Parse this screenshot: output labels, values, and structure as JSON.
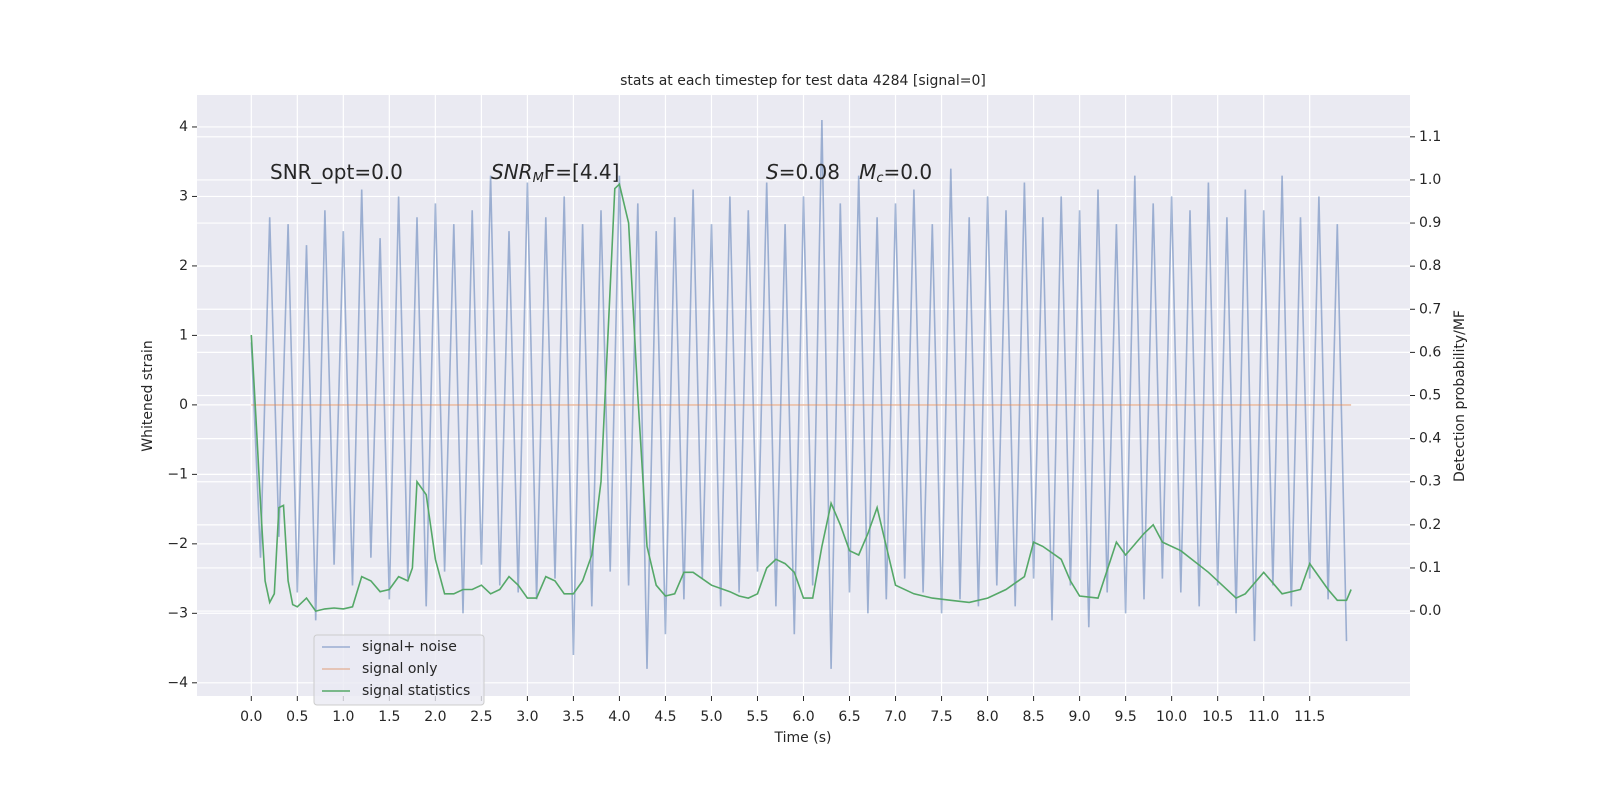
{
  "chart_data": {
    "type": "line",
    "title": "stats at each timestep for test data 4284 [signal=0]",
    "xlabel": "Time (s)",
    "ylabel": "Whitened strain",
    "y2label": "Detection probability/MF",
    "background": "#eaeaf2",
    "grid": true,
    "legend": "lower left",
    "annotations": [
      {
        "parts": [
          {
            "text": "SNR_opt=0.0"
          }
        ]
      },
      {
        "parts": [
          {
            "text": "SNR",
            "italic": true
          },
          {
            "text": "M",
            "italic": true,
            "sub": true
          },
          {
            "text": "F=[4.4]"
          }
        ]
      },
      {
        "parts": [
          {
            "text": "S",
            "italic": true
          },
          {
            "text": "=0.08   "
          },
          {
            "text": "M",
            "italic": true
          },
          {
            "text": "c",
            "italic": true,
            "sub": true
          },
          {
            "text": "=0.0"
          }
        ]
      }
    ],
    "xlim": [
      -0.59,
      12.59
    ],
    "ylim": [
      -4.19,
      4.46
    ],
    "y2lim": [
      -0.197,
      1.197
    ],
    "xticks": [
      {
        "value": 0,
        "label": "0.0"
      },
      0.5,
      {
        "value": 1,
        "label": "1.0"
      },
      1.5,
      {
        "value": 2,
        "label": "2.0"
      },
      2.5,
      {
        "value": 3,
        "label": "3.0"
      },
      3.5,
      {
        "value": 4,
        "label": "4.0"
      },
      4.5,
      {
        "value": 5,
        "label": "5.0"
      },
      5.5,
      {
        "value": 6,
        "label": "6.0"
      },
      6.5,
      {
        "value": 7,
        "label": "7.0"
      },
      7.5,
      {
        "value": 8,
        "label": "8.0"
      },
      8.5,
      {
        "value": 9,
        "label": "9.0"
      },
      9.5,
      {
        "value": 10,
        "label": "10.0"
      },
      10.5,
      {
        "value": 11,
        "label": "11.0"
      },
      11.5
    ],
    "yticks": [
      {
        "value": -4,
        "label": "−4"
      },
      {
        "value": -3,
        "label": "−3"
      },
      {
        "value": -2,
        "label": "−2"
      },
      {
        "value": -1,
        "label": "−1"
      },
      0,
      1,
      2,
      3,
      4
    ],
    "y2ticks": [
      {
        "value": 0,
        "label": "0.0"
      },
      0.1,
      0.2,
      0.3,
      0.4,
      0.5,
      0.6,
      0.7,
      0.8,
      0.9,
      {
        "value": 1,
        "label": "1.0"
      },
      1.1
    ],
    "series": [
      {
        "name": "signal+ noise",
        "color": "#4c72b0",
        "alpha": 0.5,
        "axis": "y",
        "x": [
          0.0,
          0.1,
          0.2,
          0.3,
          0.4,
          0.5,
          0.6,
          0.7,
          0.8,
          0.9,
          1.0,
          1.1,
          1.2,
          1.3,
          1.4,
          1.5,
          1.6,
          1.7,
          1.8,
          1.9,
          2.0,
          2.1,
          2.2,
          2.3,
          2.4,
          2.5,
          2.6,
          2.7,
          2.8,
          2.9,
          3.0,
          3.1,
          3.2,
          3.3,
          3.4,
          3.5,
          3.6,
          3.7,
          3.8,
          3.9,
          4.0,
          4.1,
          4.2,
          4.3,
          4.4,
          4.5,
          4.6,
          4.7,
          4.8,
          4.9,
          5.0,
          5.1,
          5.2,
          5.3,
          5.4,
          5.5,
          5.6,
          5.7,
          5.8,
          5.9,
          6.0,
          6.1,
          6.2,
          6.3,
          6.4,
          6.5,
          6.6,
          6.7,
          6.8,
          6.9,
          7.0,
          7.1,
          7.2,
          7.3,
          7.4,
          7.5,
          7.6,
          7.7,
          7.8,
          7.9,
          8.0,
          8.1,
          8.2,
          8.3,
          8.4,
          8.5,
          8.6,
          8.7,
          8.8,
          8.9,
          9.0,
          9.1,
          9.2,
          9.3,
          9.4,
          9.5,
          9.6,
          9.7,
          9.8,
          9.9,
          10.0,
          10.1,
          10.2,
          10.3,
          10.4,
          10.5,
          10.6,
          10.7,
          10.8,
          10.9,
          11.0,
          11.1,
          11.2,
          11.3,
          11.4,
          11.5,
          11.6,
          11.7,
          11.8,
          11.9
        ],
        "values": [
          0.9,
          -2.2,
          2.7,
          -1.9,
          2.6,
          -2.7,
          2.3,
          -3.1,
          2.8,
          -2.3,
          2.5,
          -2.6,
          3.1,
          -2.2,
          2.4,
          -2.8,
          3.0,
          -2.5,
          2.7,
          -2.9,
          2.9,
          -2.4,
          2.6,
          -3.0,
          2.8,
          -2.3,
          3.3,
          -2.6,
          2.5,
          -2.7,
          3.2,
          -2.8,
          2.7,
          -2.5,
          3.0,
          -3.6,
          2.6,
          -2.9,
          2.8,
          -2.4,
          3.3,
          -2.6,
          2.9,
          -3.8,
          2.5,
          -3.3,
          2.7,
          -2.8,
          3.1,
          -2.5,
          2.6,
          -2.9,
          3.0,
          -2.7,
          2.8,
          -2.4,
          3.2,
          -2.9,
          2.6,
          -3.3,
          3.0,
          -2.6,
          4.1,
          -3.8,
          2.9,
          -2.7,
          3.3,
          -3.0,
          2.7,
          -2.8,
          2.9,
          -2.5,
          3.1,
          -2.7,
          2.6,
          -3.0,
          3.4,
          -2.8,
          2.7,
          -2.9,
          3.0,
          -2.6,
          2.8,
          -2.9,
          3.2,
          -2.5,
          2.7,
          -3.1,
          3.0,
          -2.6,
          2.8,
          -3.2,
          3.1,
          -2.7,
          2.6,
          -3.0,
          3.3,
          -2.8,
          2.9,
          -2.5,
          3.0,
          -2.7,
          2.8,
          -2.9,
          3.2,
          -2.6,
          2.7,
          -3.0,
          3.1,
          -3.4,
          2.8,
          -2.6,
          3.3,
          -2.9,
          2.7,
          -2.5,
          3.0,
          -2.8,
          2.6,
          -3.4
        ]
      },
      {
        "name": "signal only",
        "color": "#dd8452",
        "alpha": 0.5,
        "axis": "y",
        "x": [
          0.0,
          11.95
        ],
        "values": [
          0,
          0
        ]
      },
      {
        "name": "signal statistics",
        "color": "#55a868",
        "alpha": 1,
        "axis": "y2",
        "x": [
          0.0,
          0.05,
          0.1,
          0.15,
          0.2,
          0.25,
          0.3,
          0.35,
          0.4,
          0.45,
          0.5,
          0.6,
          0.7,
          0.8,
          0.9,
          1.0,
          1.1,
          1.2,
          1.3,
          1.4,
          1.5,
          1.6,
          1.7,
          1.75,
          1.8,
          1.9,
          2.0,
          2.1,
          2.2,
          2.3,
          2.4,
          2.5,
          2.6,
          2.7,
          2.8,
          2.9,
          3.0,
          3.1,
          3.2,
          3.3,
          3.4,
          3.5,
          3.6,
          3.7,
          3.8,
          3.9,
          3.95,
          4.0,
          4.1,
          4.2,
          4.3,
          4.4,
          4.5,
          4.6,
          4.7,
          4.8,
          5.0,
          5.2,
          5.3,
          5.4,
          5.5,
          5.6,
          5.7,
          5.8,
          5.9,
          6.0,
          6.1,
          6.2,
          6.3,
          6.4,
          6.5,
          6.6,
          6.7,
          6.8,
          6.9,
          7.0,
          7.2,
          7.4,
          7.6,
          7.8,
          8.0,
          8.2,
          8.4,
          8.5,
          8.6,
          8.8,
          8.9,
          9.0,
          9.2,
          9.4,
          9.5,
          9.7,
          9.8,
          9.9,
          10.1,
          10.4,
          10.7,
          10.8,
          11.0,
          11.2,
          11.4,
          11.5,
          11.7,
          11.8,
          11.9,
          11.95
        ],
        "values": [
          0.64,
          0.45,
          0.25,
          0.07,
          0.02,
          0.04,
          0.24,
          0.245,
          0.07,
          0.015,
          0.01,
          0.03,
          0.0,
          0.005,
          0.007,
          0.005,
          0.01,
          0.08,
          0.07,
          0.045,
          0.05,
          0.08,
          0.07,
          0.1,
          0.3,
          0.27,
          0.12,
          0.04,
          0.04,
          0.05,
          0.05,
          0.06,
          0.04,
          0.05,
          0.08,
          0.06,
          0.03,
          0.03,
          0.08,
          0.07,
          0.04,
          0.04,
          0.07,
          0.13,
          0.3,
          0.75,
          0.98,
          0.99,
          0.9,
          0.5,
          0.15,
          0.06,
          0.035,
          0.04,
          0.09,
          0.09,
          0.06,
          0.045,
          0.035,
          0.03,
          0.04,
          0.1,
          0.12,
          0.11,
          0.09,
          0.03,
          0.03,
          0.15,
          0.25,
          0.2,
          0.14,
          0.13,
          0.18,
          0.24,
          0.15,
          0.06,
          0.04,
          0.03,
          0.025,
          0.02,
          0.03,
          0.05,
          0.08,
          0.16,
          0.15,
          0.12,
          0.07,
          0.035,
          0.03,
          0.16,
          0.13,
          0.18,
          0.2,
          0.16,
          0.14,
          0.09,
          0.03,
          0.04,
          0.09,
          0.04,
          0.05,
          0.11,
          0.05,
          0.025,
          0.025,
          0.05
        ]
      }
    ]
  }
}
